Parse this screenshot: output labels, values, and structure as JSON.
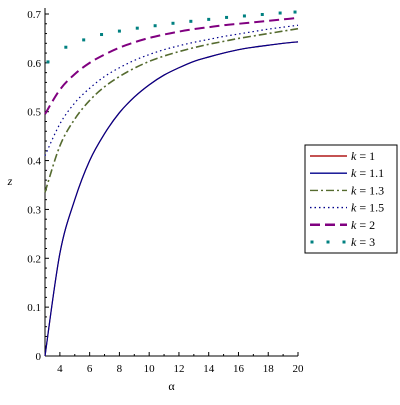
{
  "chart_data": {
    "type": "line",
    "title": "",
    "xlabel": "α",
    "ylabel": "z",
    "xlim": [
      3,
      20
    ],
    "ylim": [
      0,
      0.7
    ],
    "x_ticks": [
      4,
      6,
      8,
      10,
      12,
      14,
      16,
      18,
      20
    ],
    "x_tick_labels": [
      "4",
      "6",
      "8",
      "10",
      "12",
      "14",
      "16",
      "18",
      "20"
    ],
    "y_ticks": [
      0,
      0.1,
      0.2,
      0.3,
      0.4,
      0.5,
      0.6,
      0.7
    ],
    "y_tick_labels": [
      "0",
      "0.1",
      "0.2",
      "0.3",
      "0.4",
      "0.5",
      "0.6",
      "0.7"
    ],
    "grid": false,
    "legend_position": "right",
    "x": [
      3,
      4,
      5,
      6,
      7,
      8,
      9,
      10,
      11,
      12,
      13,
      14,
      15,
      16,
      17,
      18,
      19,
      20
    ],
    "series": [
      {
        "name": "k = 1",
        "legend_prefix": "k",
        "legend_value": "= 1",
        "color": "#b01818",
        "style": "solid",
        "values": [
          0.0,
          0.21,
          0.32,
          0.4,
          0.455,
          0.498,
          0.53,
          0.555,
          0.575,
          0.59,
          0.603,
          0.612,
          0.62,
          0.627,
          0.632,
          0.636,
          0.64,
          0.643
        ]
      },
      {
        "name": "k = 1.1",
        "legend_prefix": "k",
        "legend_value": "= 1.1",
        "color": "#00008b",
        "style": "solid",
        "values": [
          0.0,
          0.21,
          0.32,
          0.4,
          0.455,
          0.498,
          0.53,
          0.555,
          0.575,
          0.59,
          0.603,
          0.612,
          0.62,
          0.627,
          0.632,
          0.636,
          0.64,
          0.643
        ]
      },
      {
        "name": "k = 1.3",
        "legend_prefix": "k",
        "legend_value": "= 1.3",
        "color": "#556b2f",
        "style": "dashdot",
        "values": [
          0.335,
          0.43,
          0.485,
          0.523,
          0.551,
          0.572,
          0.589,
          0.603,
          0.614,
          0.623,
          0.631,
          0.638,
          0.644,
          0.65,
          0.655,
          0.66,
          0.665,
          0.67
        ]
      },
      {
        "name": "k = 1.5",
        "legend_prefix": "k",
        "legend_value": "= 1.5",
        "color": "#00008b",
        "style": "dot",
        "values": [
          0.41,
          0.475,
          0.518,
          0.548,
          0.572,
          0.59,
          0.605,
          0.617,
          0.627,
          0.635,
          0.642,
          0.648,
          0.654,
          0.659,
          0.664,
          0.669,
          0.673,
          0.677
        ]
      },
      {
        "name": "k = 2",
        "legend_prefix": "k",
        "legend_value": "= 2",
        "color": "#800080",
        "style": "dash",
        "values": [
          0.495,
          0.545,
          0.577,
          0.6,
          0.617,
          0.631,
          0.642,
          0.651,
          0.658,
          0.664,
          0.669,
          0.673,
          0.677,
          0.68,
          0.683,
          0.686,
          0.689,
          0.692
        ]
      },
      {
        "name": "k = 3",
        "legend_prefix": "k",
        "legend_value": "= 3",
        "color": "#008080",
        "style": "sparse-dot",
        "x": [
          3.2,
          4.4,
          5.6,
          6.8,
          8.0,
          9.2,
          10.4,
          11.6,
          12.8,
          14.0,
          15.2,
          16.4,
          17.6,
          18.8,
          19.8
        ],
        "values": [
          0.602,
          0.632,
          0.647,
          0.658,
          0.665,
          0.671,
          0.676,
          0.681,
          0.685,
          0.689,
          0.693,
          0.696,
          0.699,
          0.702,
          0.704
        ]
      }
    ]
  }
}
